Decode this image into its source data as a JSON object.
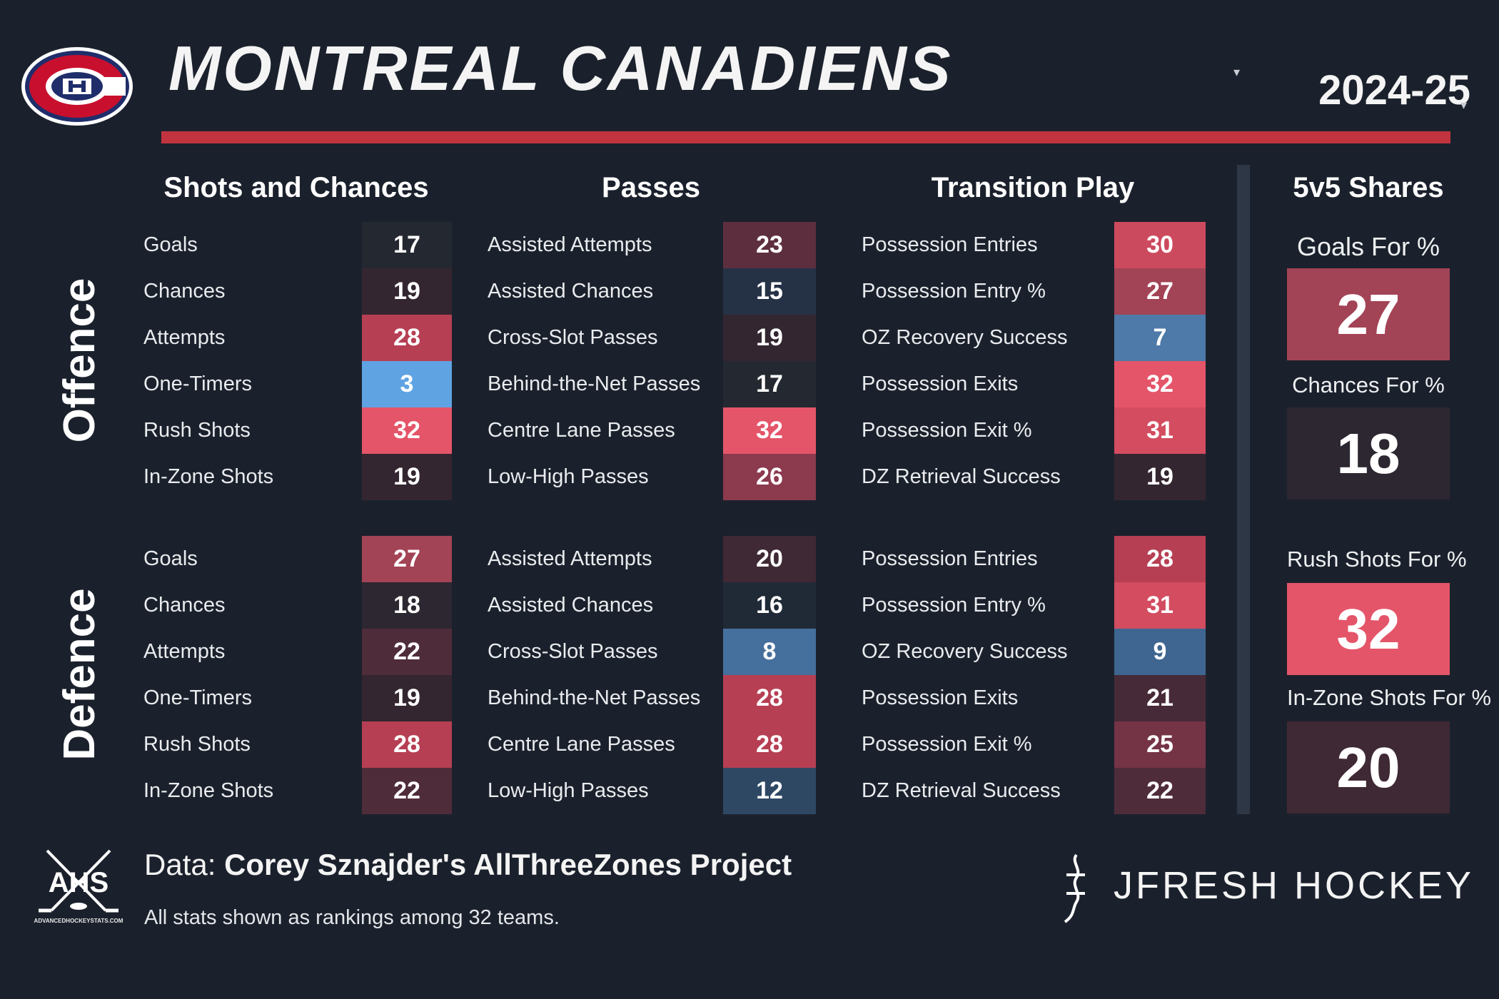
{
  "header": {
    "team": "MONTREAL CANADIENS",
    "season": "2024-25",
    "team_caret": "▾",
    "season_caret": "▾",
    "logo_icon": "canadiens-ch-logo",
    "accent_color": "#c1343f"
  },
  "sections": {
    "shots": "Shots and Chances",
    "passes": "Passes",
    "transition": "Transition Play",
    "shares": "5v5 Shares"
  },
  "groups": {
    "offence": "Offence",
    "defence": "Defence"
  },
  "offence": {
    "shots": [
      {
        "label": "Goals",
        "value": "17",
        "color": "#242830"
      },
      {
        "label": "Chances",
        "value": "19",
        "color": "#342630"
      },
      {
        "label": "Attempts",
        "value": "28",
        "color": "#b63f53"
      },
      {
        "label": "One-Timers",
        "value": "3",
        "color": "#5fa3e2"
      },
      {
        "label": "Rush Shots",
        "value": "32",
        "color": "#e45569"
      },
      {
        "label": "In-Zone Shots",
        "value": "19",
        "color": "#342630"
      }
    ],
    "passes": [
      {
        "label": "Assisted Attempts",
        "value": "23",
        "color": "#5d2f3e"
      },
      {
        "label": "Assisted Chances",
        "value": "15",
        "color": "#253246"
      },
      {
        "label": "Cross-Slot Passes",
        "value": "19",
        "color": "#342630"
      },
      {
        "label": "Behind-the-Net Passes",
        "value": "17",
        "color": "#242830"
      },
      {
        "label": "Centre Lane Passes",
        "value": "32",
        "color": "#e45569"
      },
      {
        "label": "Low-High Passes",
        "value": "26",
        "color": "#8c3a4e"
      }
    ],
    "transition": [
      {
        "label": "Possession Entries",
        "value": "30",
        "color": "#cc4a5e"
      },
      {
        "label": "Possession Entry %",
        "value": "27",
        "color": "#a34356"
      },
      {
        "label": "OZ Recovery Success",
        "value": "7",
        "color": "#4d7aa8"
      },
      {
        "label": "Possession Exits",
        "value": "32",
        "color": "#e45569"
      },
      {
        "label": "Possession Exit %",
        "value": "31",
        "color": "#d34c60"
      },
      {
        "label": "DZ Retrieval Success",
        "value": "19",
        "color": "#342630"
      }
    ]
  },
  "defence": {
    "shots": [
      {
        "label": "Goals",
        "value": "27",
        "color": "#a34356"
      },
      {
        "label": "Chances",
        "value": "18",
        "color": "#2c2730"
      },
      {
        "label": "Attempts",
        "value": "22",
        "color": "#4f2c3a"
      },
      {
        "label": "One-Timers",
        "value": "19",
        "color": "#342630"
      },
      {
        "label": "Rush Shots",
        "value": "28",
        "color": "#b63f53"
      },
      {
        "label": "In-Zone Shots",
        "value": "22",
        "color": "#4f2c3a"
      }
    ],
    "passes": [
      {
        "label": "Assisted Attempts",
        "value": "20",
        "color": "#3f2934"
      },
      {
        "label": "Assisted Chances",
        "value": "16",
        "color": "#202a36"
      },
      {
        "label": "Cross-Slot Passes",
        "value": "8",
        "color": "#456f9c"
      },
      {
        "label": "Behind-the-Net Passes",
        "value": "28",
        "color": "#b63f53"
      },
      {
        "label": "Centre Lane Passes",
        "value": "28",
        "color": "#b63f53"
      },
      {
        "label": "Low-High Passes",
        "value": "12",
        "color": "#2e4864"
      }
    ],
    "transition": [
      {
        "label": "Possession Entries",
        "value": "28",
        "color": "#b63f53"
      },
      {
        "label": "Possession Entry %",
        "value": "31",
        "color": "#d34c60"
      },
      {
        "label": "OZ Recovery Success",
        "value": "9",
        "color": "#3e6690"
      },
      {
        "label": "Possession Exits",
        "value": "21",
        "color": "#472a37"
      },
      {
        "label": "Possession Exit %",
        "value": "25",
        "color": "#743446"
      },
      {
        "label": "DZ Retrieval Success",
        "value": "22",
        "color": "#4f2c3a"
      }
    ]
  },
  "shares": [
    {
      "label": "Goals For %",
      "value": "27",
      "color": "#a34356"
    },
    {
      "label": "Chances For %",
      "value": "18",
      "color": "#2c2730"
    },
    {
      "label": "Rush Shots For %",
      "value": "32",
      "color": "#e45569"
    },
    {
      "label": "In-Zone Shots For %",
      "value": "20",
      "color": "#3f2934"
    }
  ],
  "footer": {
    "data_prefix": "Data: ",
    "data_source": "Corey Sznajder's AllThreeZones Project",
    "note": "All stats shown as rankings among 32 teams.",
    "ahs_text": "AHS",
    "ahs_url": "ADVANCEDHOCKEYSTATS.COM",
    "brand": "JFRESH HOCKEY",
    "ahs_icon": "ahs-crossed-sticks-logo",
    "brand_icon": "jfresh-logo-mark"
  }
}
